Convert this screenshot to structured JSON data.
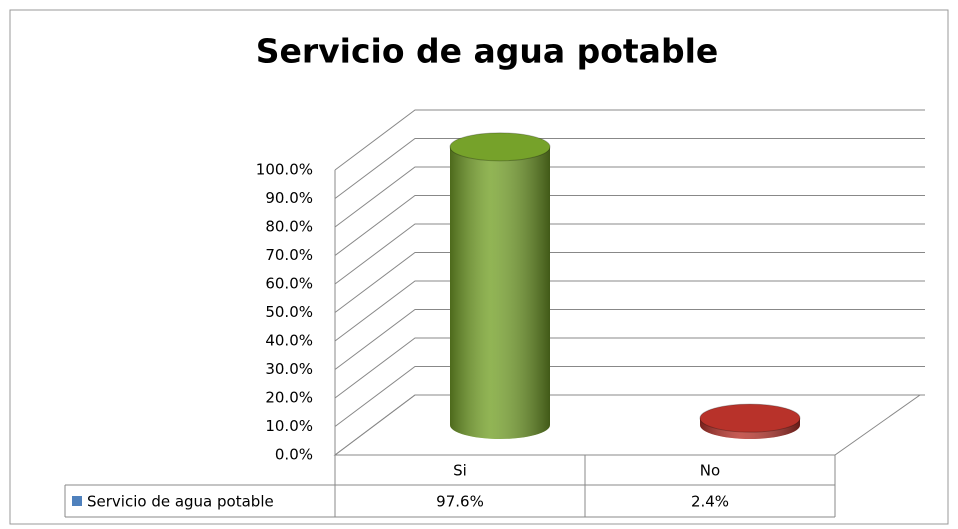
{
  "chart_data": {
    "type": "bar3d",
    "title": "Servicio de agua potable",
    "categories": [
      "Si",
      "No"
    ],
    "series": [
      {
        "name": "Servicio de agua potable",
        "color": "#4f81bd",
        "values": [
          97.6,
          2.4
        ],
        "value_labels": [
          "97.6%",
          "2.4%"
        ],
        "point_colors": [
          "#76a22a",
          "#b8322a"
        ]
      }
    ],
    "ylim": [
      0,
      100
    ],
    "yticks": [
      {
        "value": 0,
        "label": "0.0%"
      },
      {
        "value": 10,
        "label": "10.0%"
      },
      {
        "value": 20,
        "label": "20.0%"
      },
      {
        "value": 30,
        "label": "30.0%"
      },
      {
        "value": 40,
        "label": "40.0%"
      },
      {
        "value": 50,
        "label": "50.0%"
      },
      {
        "value": 60,
        "label": "60.0%"
      },
      {
        "value": 70,
        "label": "70.0%"
      },
      {
        "value": 80,
        "label": "80.0%"
      },
      {
        "value": 90,
        "label": "90.0%"
      },
      {
        "value": 100,
        "label": "100.0%"
      }
    ],
    "grid": true
  }
}
